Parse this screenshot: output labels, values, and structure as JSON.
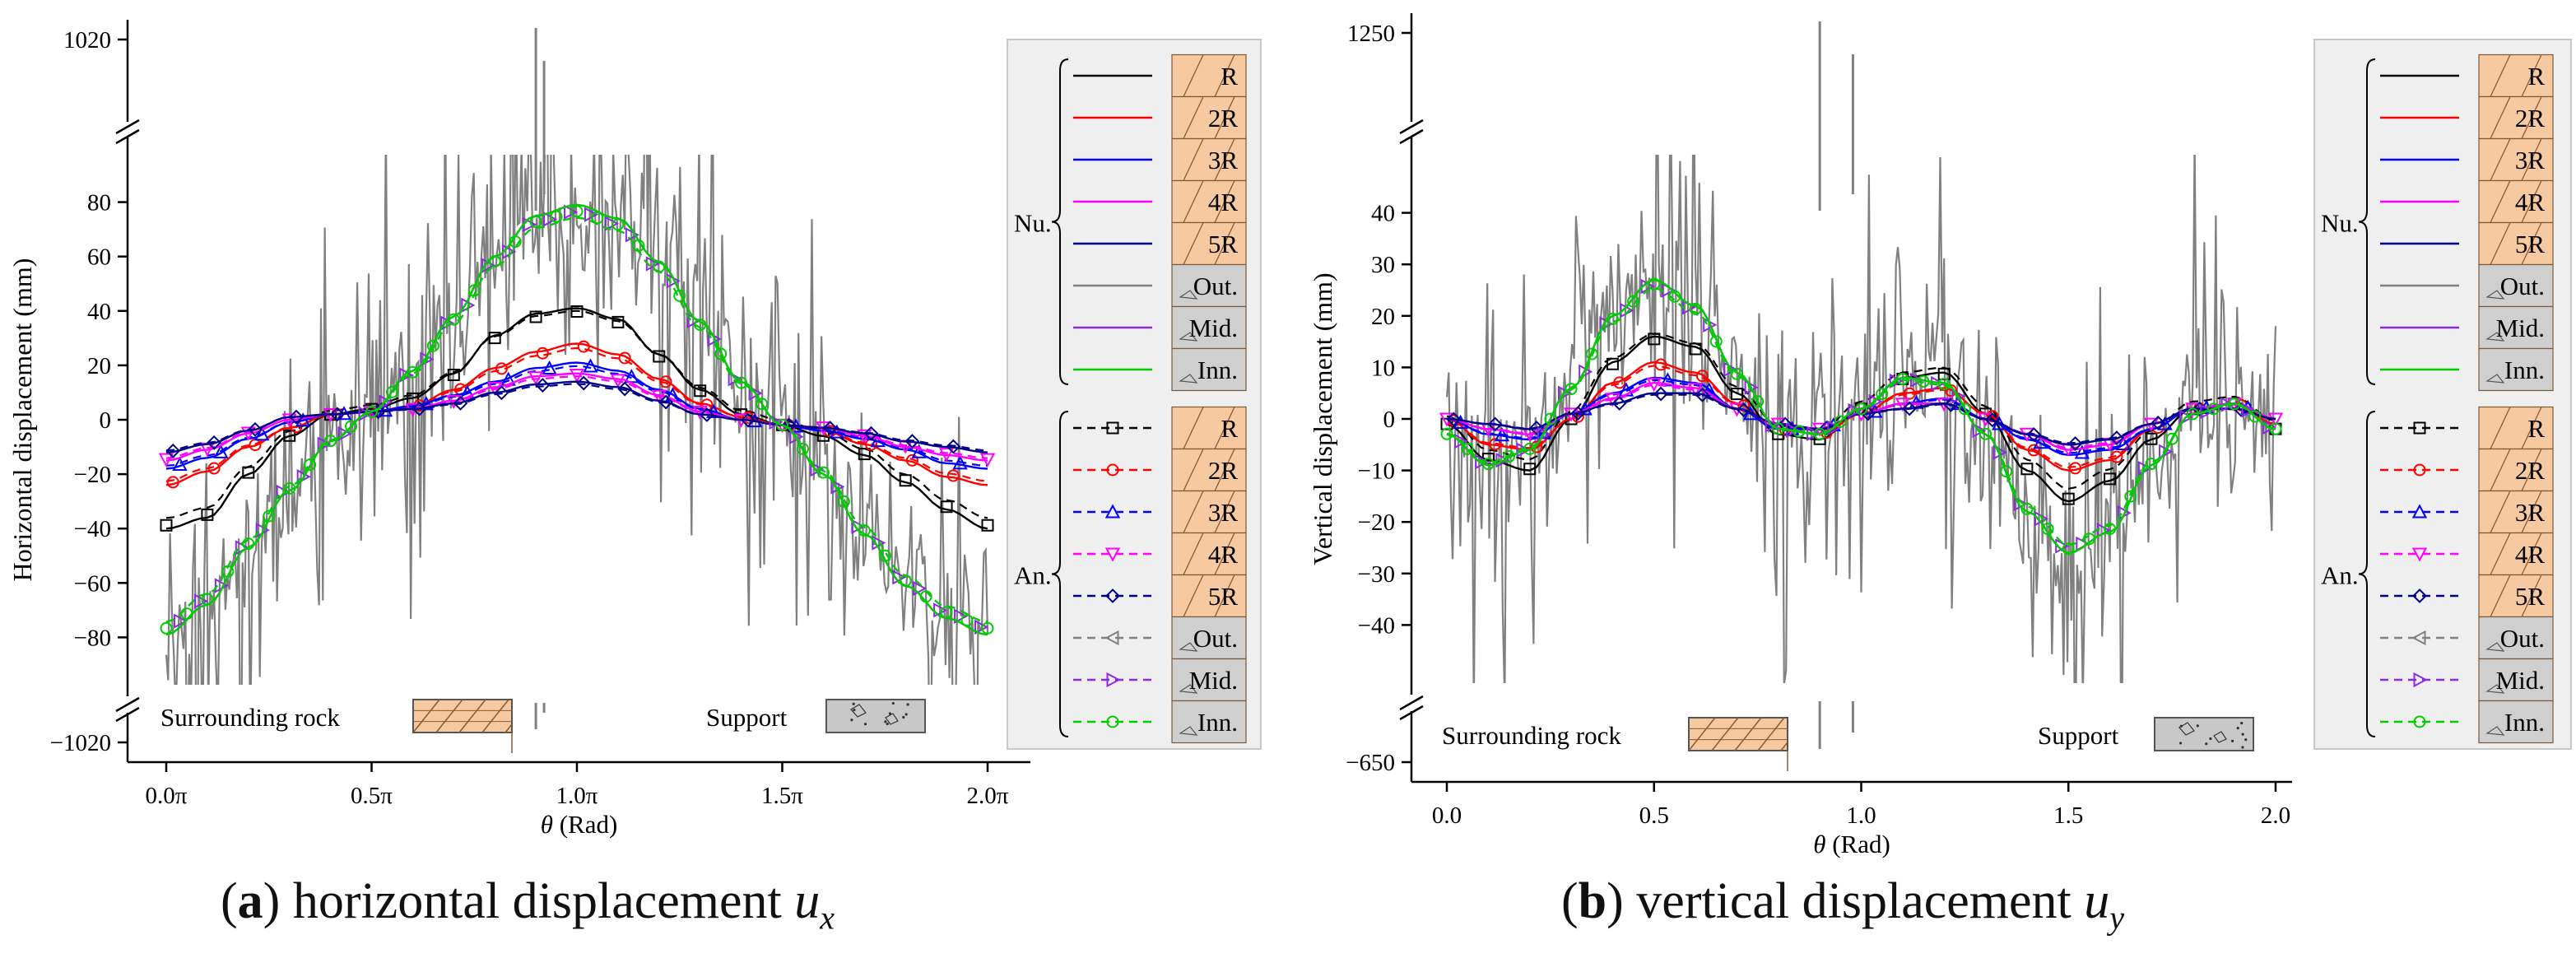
{
  "colors": {
    "R": "#000000",
    "2R": "#ff0000",
    "3R": "#0000ff",
    "4R": "#ff00ff",
    "5R": "#00008b",
    "Out.": "#808080",
    "Mid.": "#8a2be2",
    "Inn.": "#00cc00",
    "rock_fill": "#f6c9a0",
    "support_fill": "#c8c8c8",
    "legend_bg": "#efefef"
  },
  "captions": {
    "a": {
      "letter": "a",
      "text": "horizontal displacement",
      "var": "u",
      "sub": "x"
    },
    "b": {
      "letter": "b",
      "text": "vertical displacement",
      "var": "u",
      "sub": "y"
    }
  },
  "chart_data": [
    {
      "id": "a",
      "type": "line",
      "title": "horizontal displacement u_x",
      "xlabel": "θ (Rad)",
      "ylabel": "Horizontal displacement (mm)",
      "xlim": [
        0,
        2
      ],
      "ylim": [
        -95,
        95
      ],
      "xticks": [
        0,
        0.5,
        1,
        1.5,
        2
      ],
      "xtick_labels": [
        "0.0π",
        "0.5π",
        "1.0π",
        "1.5π",
        "2.0π"
      ],
      "yticks": [
        -80,
        -60,
        -40,
        -20,
        0,
        20,
        40,
        60,
        80
      ],
      "ytick_labels": [
        "−80",
        "−60",
        "−40",
        "−20",
        "0",
        "20",
        "40",
        "60",
        "80"
      ],
      "axis_break": {
        "top_label": "1020",
        "bottom_label": "−1020"
      },
      "noise": {
        "name": "Out.",
        "color": "#808080",
        "seed": 11,
        "spikes_at": [
          0.9,
          0.92
        ]
      },
      "zones": {
        "rock_label": "Surrounding rock",
        "support_label": "Support"
      },
      "x_samples": [
        0,
        0.1,
        0.2,
        0.3,
        0.4,
        0.5,
        0.6,
        0.7,
        0.8,
        0.9,
        1.0,
        1.1,
        1.2,
        1.3,
        1.4,
        1.5,
        1.6,
        1.7,
        1.8,
        1.9,
        2.0
      ],
      "series": [
        {
          "name": "R",
          "group": "Nu",
          "values": [
            -40,
            -36,
            -20,
            -6,
            2,
            4,
            8,
            17,
            31,
            39,
            41,
            37,
            24,
            11,
            2,
            -2,
            -6,
            -13,
            -23,
            -33,
            -40
          ]
        },
        {
          "name": "2R",
          "group": "Nu",
          "values": [
            -24,
            -19,
            -10,
            -3,
            2,
            3,
            5,
            11,
            19,
            25,
            28,
            24,
            15,
            6,
            1,
            -2,
            -4,
            -9,
            -15,
            -21,
            -24
          ]
        },
        {
          "name": "3R",
          "group": "Nu",
          "values": [
            -18,
            -14,
            -7,
            -1,
            2,
            3,
            5,
            9,
            14,
            19,
            21,
            18,
            11,
            4,
            0,
            -2,
            -4,
            -7,
            -11,
            -16,
            -18
          ]
        },
        {
          "name": "4R",
          "group": "Nu",
          "values": [
            -15,
            -11,
            -5,
            0,
            2,
            3,
            4,
            7,
            12,
            16,
            17,
            15,
            9,
            3,
            0,
            -2,
            -3,
            -6,
            -10,
            -13,
            -15
          ]
        },
        {
          "name": "5R",
          "group": "Nu",
          "values": [
            -12,
            -9,
            -4,
            1,
            2,
            3,
            4,
            6,
            10,
            13,
            14,
            12,
            7,
            2,
            0,
            -2,
            -3,
            -5,
            -8,
            -10,
            -12
          ]
        },
        {
          "name": "Mid.",
          "group": "Nu",
          "values": [
            -79,
            -68,
            -47,
            -26,
            -8,
            3,
            18,
            38,
            60,
            75,
            79,
            74,
            58,
            36,
            14,
            -2,
            -20,
            -42,
            -61,
            -73,
            -79
          ]
        },
        {
          "name": "Inn.",
          "group": "Nu",
          "values": [
            -79,
            -68,
            -47,
            -26,
            -8,
            3,
            18,
            38,
            60,
            75,
            79,
            74,
            58,
            36,
            14,
            -2,
            -20,
            -42,
            -61,
            -73,
            -79
          ]
        }
      ],
      "legend": {
        "numerical_group": "Nu.",
        "analytical_group": "An.",
        "numerical": [
          "R",
          "2R",
          "3R",
          "4R",
          "5R",
          "Out.",
          "Mid.",
          "Inn."
        ],
        "analytical": [
          "R",
          "2R",
          "3R",
          "4R",
          "5R",
          "Out.",
          "Mid.",
          "Inn."
        ]
      }
    },
    {
      "id": "b",
      "type": "line",
      "title": "vertical displacement u_y",
      "xlabel": "θ (Rad)",
      "ylabel": "Vertical displacement (mm)",
      "xlim": [
        0,
        2
      ],
      "ylim": [
        -50,
        50
      ],
      "xticks": [
        0,
        0.5,
        1,
        1.5,
        2
      ],
      "xtick_labels": [
        "0.0",
        "0.5",
        "1.0",
        "1.5",
        "2.0"
      ],
      "yticks": [
        -40,
        -30,
        -20,
        -10,
        0,
        10,
        20,
        30,
        40
      ],
      "ytick_labels": [
        "−40",
        "−30",
        "−20",
        "−10",
        "0",
        "10",
        "20",
        "30",
        "40"
      ],
      "axis_break": {
        "top_label": "1250",
        "bottom_label": "−650"
      },
      "noise": {
        "name": "Out.",
        "color": "#808080",
        "seed": 29,
        "spikes_at": [
          0.9,
          0.98
        ]
      },
      "zones": {
        "rock_label": "Surrounding rock",
        "support_label": "Support"
      },
      "x_samples": [
        0,
        0.1,
        0.2,
        0.3,
        0.4,
        0.5,
        0.6,
        0.7,
        0.8,
        0.9,
        1.0,
        1.1,
        1.2,
        1.3,
        1.4,
        1.5,
        1.6,
        1.7,
        1.8,
        1.9,
        2.0
      ],
      "series": [
        {
          "name": "R",
          "group": "Nu",
          "values": [
            -1,
            -8,
            -10,
            0,
            11,
            16,
            14,
            5,
            -3,
            -4,
            2,
            8,
            9,
            1,
            -10,
            -16,
            -12,
            -4,
            2,
            3,
            -2
          ]
        },
        {
          "name": "2R",
          "group": "Nu",
          "values": [
            0,
            -5,
            -6,
            0,
            7,
            11,
            9,
            3,
            -2,
            -3,
            1,
            5,
            6,
            1,
            -6,
            -10,
            -8,
            -2,
            2,
            3,
            -1
          ]
        },
        {
          "name": "3R",
          "group": "Nu",
          "values": [
            0,
            -3,
            -4,
            1,
            5,
            8,
            7,
            2,
            -2,
            -2,
            1,
            3,
            4,
            0,
            -4,
            -7,
            -6,
            -2,
            2,
            3,
            0
          ]
        },
        {
          "name": "4R",
          "group": "Nu",
          "values": [
            0,
            -2,
            -3,
            1,
            4,
            7,
            6,
            2,
            -1,
            -2,
            1,
            3,
            3,
            0,
            -3,
            -6,
            -5,
            -1,
            2,
            3,
            0
          ]
        },
        {
          "name": "5R",
          "group": "Nu",
          "values": [
            0,
            -1,
            -2,
            1,
            3,
            5,
            5,
            2,
            -1,
            -2,
            1,
            2,
            3,
            0,
            -3,
            -5,
            -4,
            -1,
            2,
            2,
            0
          ]
        },
        {
          "name": "Mid.",
          "group": "Nu",
          "values": [
            -3,
            -9,
            -6,
            6,
            20,
            27,
            22,
            9,
            -2,
            -3,
            2,
            8,
            7,
            -3,
            -18,
            -26,
            -22,
            -9,
            1,
            3,
            -2
          ]
        },
        {
          "name": "Inn.",
          "group": "Nu",
          "values": [
            -3,
            -9,
            -6,
            6,
            20,
            27,
            22,
            9,
            -2,
            -3,
            2,
            8,
            7,
            -3,
            -18,
            -26,
            -22,
            -9,
            1,
            3,
            -2
          ]
        }
      ],
      "legend": {
        "numerical_group": "Nu.",
        "analytical_group": "An.",
        "numerical": [
          "R",
          "2R",
          "3R",
          "4R",
          "5R",
          "Out.",
          "Mid.",
          "Inn."
        ],
        "analytical": [
          "R",
          "2R",
          "3R",
          "4R",
          "5R",
          "Out.",
          "Mid.",
          "Inn."
        ]
      }
    }
  ]
}
